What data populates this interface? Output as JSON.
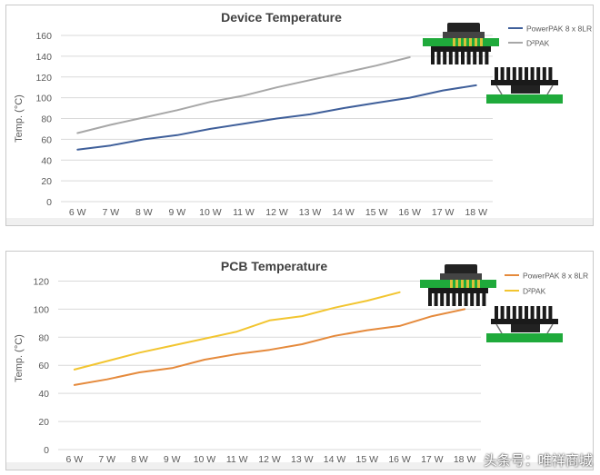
{
  "chart_data": [
    {
      "type": "line",
      "title": "Device Temperature",
      "ylabel": "Temp. (°C)",
      "xlabel": "",
      "categories": [
        "6 W",
        "7 W",
        "8 W",
        "9 W",
        "10 W",
        "11 W",
        "12 W",
        "13 W",
        "14 W",
        "15 W",
        "16 W",
        "17 W",
        "18 W"
      ],
      "ylim": [
        0,
        160
      ],
      "yticks": [
        0,
        20,
        40,
        60,
        80,
        100,
        120,
        140,
        160
      ],
      "grid": true,
      "legend": "top-right",
      "series": [
        {
          "name": "PowerPAK 8 x 8LR",
          "color": "#3f5f9a",
          "values": [
            50,
            54,
            60,
            64,
            70,
            75,
            80,
            84,
            90,
            95,
            100,
            107,
            112
          ]
        },
        {
          "name": "D²PAK",
          "color": "#a7a7a7",
          "values": [
            66,
            74,
            81,
            88,
            96,
            102,
            110,
            117,
            124,
            131,
            139,
            null,
            null
          ]
        }
      ]
    },
    {
      "type": "line",
      "title": "PCB Temperature",
      "ylabel": "Temp. (°C)",
      "xlabel": "",
      "categories": [
        "6 W",
        "7 W",
        "8 W",
        "9 W",
        "10 W",
        "11 W",
        "12 W",
        "13 W",
        "14 W",
        "15 W",
        "16 W",
        "17 W",
        "18 W"
      ],
      "ylim": [
        0,
        130
      ],
      "yticks": [
        0,
        20,
        40,
        60,
        80,
        100,
        120
      ],
      "grid": true,
      "legend": "top-right",
      "series": [
        {
          "name": "PowerPAK 8 x 8LR",
          "color": "#e58a3c",
          "values": [
            46,
            50,
            55,
            58,
            64,
            68,
            71,
            75,
            81,
            85,
            88,
            95,
            100
          ]
        },
        {
          "name": "D²PAK",
          "color": "#f2c530",
          "values": [
            57,
            63,
            69,
            74,
            79,
            84,
            92,
            95,
            101,
            106,
            112,
            null,
            null
          ]
        }
      ]
    }
  ],
  "watermark": "头条号：唯祥商城",
  "illustration_colors": {
    "pcb": "#1faa3b",
    "heatsink": "#1a1a1a",
    "pads": "#d8c23a"
  }
}
